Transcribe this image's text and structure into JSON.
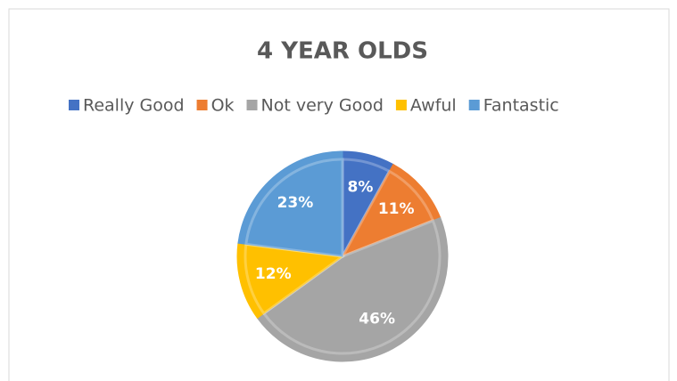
{
  "chart_data": {
    "type": "pie",
    "title": "4 YEAR OLDS",
    "categories": [
      "Really Good",
      "Ok",
      "Not very Good",
      "Awful",
      "Fantastic"
    ],
    "values": [
      8,
      11,
      46,
      12,
      23
    ],
    "value_labels": [
      "8%",
      "11%",
      "46%",
      "12%",
      "23%"
    ],
    "colors": [
      "#4472c4",
      "#ed7d31",
      "#a5a5a5",
      "#ffc000",
      "#5b9bd5"
    ],
    "legend": "top"
  }
}
